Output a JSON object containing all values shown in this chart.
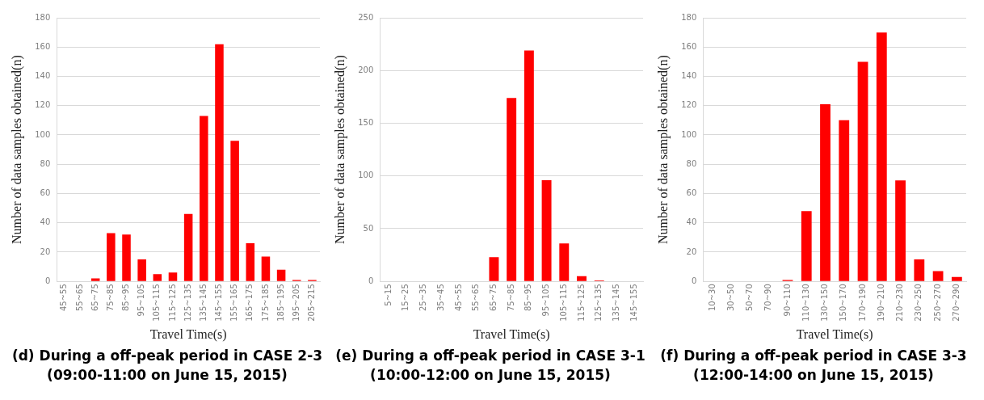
{
  "chart_data": [
    {
      "type": "bar",
      "xlabel": "Travel Time(s)",
      "ylabel": "Number of data samples obtained(n)",
      "categories": [
        "45~55",
        "55~65",
        "65~75",
        "75~85",
        "85~95",
        "95~105",
        "105~115",
        "115~125",
        "125~135",
        "135~145",
        "145~155",
        "155~165",
        "165~175",
        "175~185",
        "185~195",
        "195~205",
        "205~215"
      ],
      "values": [
        0,
        0,
        2,
        33,
        32,
        15,
        5,
        6,
        46,
        113,
        162,
        96,
        26,
        17,
        8,
        1,
        1
      ],
      "color": "#ff0000",
      "ylim": [
        0,
        180
      ],
      "yticks": [
        0,
        20,
        40,
        60,
        80,
        100,
        120,
        140,
        160,
        180
      ],
      "grid": "y",
      "annotations": [
        "(d) During a off-peak period in CASE 2-3",
        "(09:00-11:00 on June 15, 2015)"
      ]
    },
    {
      "type": "bar",
      "xlabel": "Travel Time(s)",
      "ylabel": "Number of data samples obtained(n)",
      "categories": [
        "5~15",
        "15~25",
        "25~35",
        "35~45",
        "45~55",
        "55~65",
        "65~75",
        "75~85",
        "85~95",
        "95~105",
        "105~115",
        "115~125",
        "125~135",
        "135~145",
        "145~155"
      ],
      "values": [
        0,
        0,
        0,
        0,
        0,
        0,
        23,
        174,
        219,
        96,
        36,
        5,
        1,
        0,
        0
      ],
      "color": "#ff0000",
      "ylim": [
        0,
        250
      ],
      "yticks": [
        0,
        50,
        100,
        150,
        200,
        250
      ],
      "grid": "y",
      "annotations": [
        "(e) During a off-peak period in CASE 3-1",
        "(10:00-12:00 on June 15, 2015)"
      ]
    },
    {
      "type": "bar",
      "xlabel": "Travel Time(s)",
      "ylabel": "Number of data samples obtained(n)",
      "categories": [
        "10~30",
        "30~50",
        "50~70",
        "70~90",
        "90~110",
        "110~130",
        "130~150",
        "150~170",
        "170~190",
        "190~210",
        "210~230",
        "230~250",
        "250~270",
        "270~290"
      ],
      "values": [
        0,
        0,
        0,
        0,
        1,
        48,
        121,
        110,
        150,
        170,
        69,
        15,
        7,
        3
      ],
      "color": "#ff0000",
      "ylim": [
        0,
        180
      ],
      "yticks": [
        0,
        20,
        40,
        60,
        80,
        100,
        120,
        140,
        160,
        180
      ],
      "grid": "y",
      "annotations": [
        "(f) During a off-peak period in CASE 3-3",
        "(12:00-14:00 on June 15, 2015)"
      ]
    }
  ]
}
